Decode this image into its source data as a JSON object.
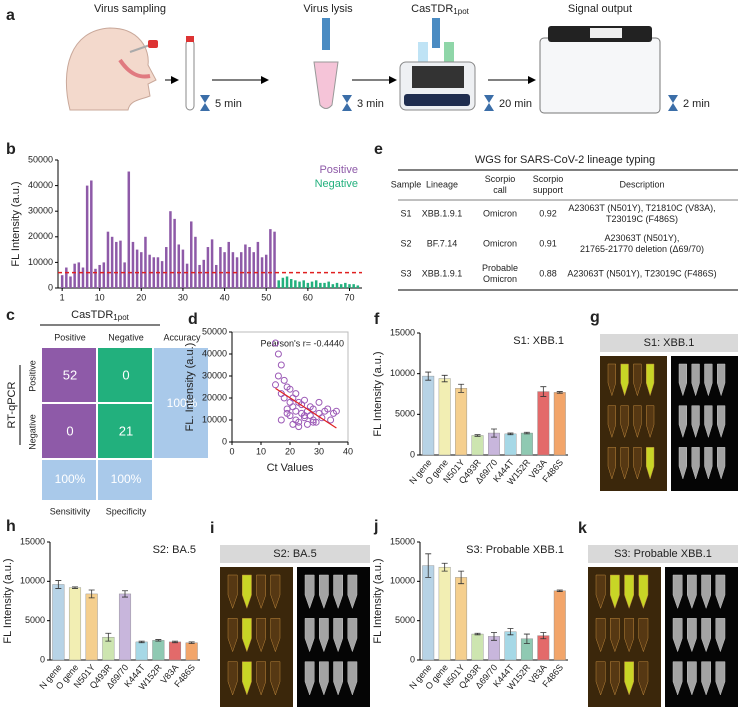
{
  "workflow": {
    "label": "a",
    "steps": [
      "Virus sampling",
      "Virus lysis",
      {
        "main": "CasTDR",
        "sub": "1pot"
      },
      "Signal output"
    ],
    "times": [
      "5 min",
      "3 min",
      "20 min",
      "2 min"
    ]
  },
  "matrix": {
    "label": "c",
    "method": {
      "main": "CasTDR",
      "sub": "1pot"
    },
    "reference": "RT-qPCR",
    "columns": [
      "Positive",
      "Negative",
      "Accuracy"
    ],
    "rows": [
      "Positive",
      "Negative"
    ],
    "cells": [
      [
        52,
        0
      ],
      [
        0,
        21
      ]
    ],
    "accuracy": "100%",
    "footer": [
      "100%",
      "100%"
    ],
    "footer_labels": [
      "Sensitivity",
      "Specificity"
    ]
  },
  "table": {
    "label": "e",
    "title": "WGS for SARS-CoV-2 lineage typing",
    "header": [
      "Sample",
      "Lineage",
      [
        "Scorpio",
        "call"
      ],
      [
        "Scorpio",
        "support"
      ],
      "Description"
    ],
    "rows": [
      [
        "S1",
        "XBB.1.9.1",
        "Omicron",
        0.92,
        [
          "A23063T (N501Y), T21810C (V83A),",
          "T23019C (F486S)"
        ]
      ],
      [
        "S2",
        "BF.7.14",
        "Omicron",
        0.91,
        [
          "A23063T (N501Y),",
          "21765-21770 deletion (Δ69/70)"
        ]
      ],
      [
        "S3",
        "XBB.1.9.1",
        [
          "Probable",
          "Omicron"
        ],
        0.88,
        [
          "A23063T (N501Y), T23019C (F486S)"
        ]
      ]
    ]
  },
  "images": [
    {
      "label": "g",
      "title": "S1: XBB.1"
    },
    {
      "label": "i",
      "title": "S2: BA.5"
    },
    {
      "label": "k",
      "title": "S3: Probable XBB.1"
    }
  ],
  "chart_data": [
    {
      "type": "bar",
      "label": "b",
      "ylabel": "FL Intensity (a.u.)",
      "x": [
        1,
        2,
        3,
        4,
        5,
        6,
        7,
        8,
        9,
        10,
        11,
        12,
        13,
        14,
        15,
        16,
        17,
        18,
        19,
        20,
        21,
        22,
        23,
        24,
        25,
        26,
        27,
        28,
        29,
        30,
        31,
        32,
        33,
        34,
        35,
        36,
        37,
        38,
        39,
        40,
        41,
        42,
        43,
        44,
        45,
        46,
        47,
        48,
        49,
        50,
        51,
        52,
        53,
        54,
        55,
        56,
        57,
        58,
        59,
        60,
        61,
        62,
        63,
        64,
        65,
        66,
        67,
        68,
        69,
        70,
        71,
        72
      ],
      "series": [
        {
          "name": "Positive",
          "color": "#8e5aa8",
          "values": [
            5000,
            8000,
            4500,
            9500,
            10000,
            8000,
            40000,
            42000,
            7500,
            9000,
            10000,
            22000,
            20000,
            18000,
            18500,
            10000,
            45500,
            18000,
            15000,
            14000,
            20000,
            13000,
            12000,
            12000,
            10500,
            16000,
            30000,
            27000,
            17000,
            15000,
            9500,
            26000,
            20000,
            9000,
            11000,
            16000,
            19000,
            9000,
            16000,
            14000,
            18000,
            14000,
            12000,
            14000,
            17000,
            16000,
            14000,
            18000,
            12000,
            13000,
            23000,
            22000,
            null,
            null,
            null,
            null,
            null,
            null,
            null,
            null,
            null,
            null,
            null,
            null,
            null,
            null,
            null,
            null,
            null,
            null,
            null,
            null
          ]
        },
        {
          "name": "Negative",
          "color": "#22b07d",
          "values": [
            null,
            null,
            null,
            null,
            null,
            null,
            null,
            null,
            null,
            null,
            null,
            null,
            null,
            null,
            null,
            null,
            null,
            null,
            null,
            null,
            null,
            null,
            null,
            null,
            null,
            null,
            null,
            null,
            null,
            null,
            null,
            null,
            null,
            null,
            null,
            null,
            null,
            null,
            null,
            null,
            null,
            null,
            null,
            null,
            null,
            null,
            null,
            null,
            null,
            null,
            null,
            null,
            3000,
            4000,
            4500,
            3500,
            3000,
            2500,
            3000,
            2000,
            2500,
            3000,
            2000,
            2000,
            2500,
            1500,
            2000,
            1500,
            2000,
            1500,
            1500,
            1000
          ]
        }
      ],
      "threshold": 6000,
      "threshold_color": "#e02020",
      "xlim": [
        0,
        73
      ],
      "xticks": [
        1,
        10,
        20,
        30,
        40,
        50,
        60,
        70
      ],
      "ylim": [
        0,
        50000
      ],
      "yticks": [
        0,
        10000,
        20000,
        30000,
        40000,
        50000
      ],
      "legend": "upper right"
    },
    {
      "type": "scatter",
      "label": "d",
      "xlabel": "Ct Values",
      "ylabel": "FL. Intensity (a.u.)",
      "annotation": "Pearson's r= -0.4440",
      "color": "#9b59b6",
      "fit_color": "#e02020",
      "x": [
        15,
        16,
        16,
        17,
        17,
        18,
        18,
        19,
        19,
        20,
        20,
        20,
        21,
        21,
        22,
        22,
        22,
        23,
        23,
        24,
        24,
        25,
        25,
        26,
        26,
        27,
        27,
        28,
        28,
        29,
        30,
        30,
        31,
        32,
        33,
        34,
        35,
        36,
        15,
        17,
        19,
        21,
        23,
        25,
        28
      ],
      "values": [
        45000,
        40000,
        30000,
        22000,
        35000,
        20000,
        28000,
        15000,
        25000,
        18000,
        12000,
        24000,
        16000,
        20000,
        10000,
        14000,
        22000,
        18000,
        9000,
        13000,
        17000,
        11000,
        19000,
        8000,
        14000,
        12000,
        16000,
        10000,
        15000,
        9000,
        13000,
        18000,
        11000,
        14000,
        15000,
        10000,
        13000,
        14000,
        26000,
        10000,
        13000,
        8000,
        7000,
        12000,
        9000
      ],
      "xlim": [
        0,
        40
      ],
      "xticks": [
        0,
        10,
        20,
        30,
        40
      ],
      "ylim": [
        0,
        50000
      ],
      "yticks": [
        0,
        10000,
        20000,
        30000,
        40000,
        50000
      ]
    },
    {
      "type": "catbar",
      "label": "f",
      "title": "S1: XBB.1",
      "ylabel": "FL Intensity (a.u.)",
      "categories": [
        "N gene",
        "O gene",
        "N501Y",
        "Q493R",
        "Δ69/70",
        "K444T",
        "W152R",
        "V83A",
        "F486S"
      ],
      "colors": [
        "#b7d3e6",
        "#f2eeb3",
        "#f5cf8e",
        "#cde5b0",
        "#c8b6dc",
        "#a6d8e6",
        "#8fc9b2",
        "#e36a6a",
        "#f2a56a"
      ],
      "values": [
        9700,
        9400,
        8200,
        2400,
        2700,
        2600,
        2700,
        7800,
        7700
      ],
      "errors": [
        500,
        400,
        500,
        100,
        500,
        100,
        100,
        600,
        100
      ],
      "ylim": [
        0,
        15000
      ],
      "yticks": [
        0,
        5000,
        10000,
        15000
      ]
    },
    {
      "type": "catbar",
      "label": "h",
      "title": "S2: BA.5",
      "ylabel": "FL Intensity (a.u.)",
      "categories": [
        "N gene",
        "O gene",
        "N501Y",
        "Q493R",
        "Δ69/70",
        "K444T",
        "W152R",
        "V83A",
        "F486S"
      ],
      "colors": [
        "#b7d3e6",
        "#f2eeb3",
        "#f5cf8e",
        "#cde5b0",
        "#c8b6dc",
        "#a6d8e6",
        "#8fc9b2",
        "#e36a6a",
        "#f2a56a"
      ],
      "values": [
        9600,
        9200,
        8400,
        2900,
        8400,
        2300,
        2500,
        2300,
        2200
      ],
      "errors": [
        500,
        100,
        500,
        500,
        400,
        100,
        100,
        100,
        100
      ],
      "ylim": [
        0,
        15000
      ],
      "yticks": [
        0,
        5000,
        10000,
        15000
      ]
    },
    {
      "type": "catbar",
      "label": "j",
      "title": "S3: Probable XBB.1",
      "ylabel": "FL Intensity (a.u.)",
      "categories": [
        "N gene",
        "O gene",
        "N501Y",
        "Q493R",
        "Δ69/70",
        "K444T",
        "W152R",
        "V83A",
        "F486S"
      ],
      "colors": [
        "#b7d3e6",
        "#f2eeb3",
        "#f5cf8e",
        "#cde5b0",
        "#c8b6dc",
        "#a6d8e6",
        "#8fc9b2",
        "#e36a6a",
        "#f2a56a"
      ],
      "values": [
        12000,
        11800,
        10500,
        3300,
        3000,
        3600,
        2700,
        3100,
        8800
      ],
      "errors": [
        1500,
        500,
        800,
        100,
        500,
        400,
        600,
        400,
        100
      ],
      "ylim": [
        0,
        15000
      ],
      "yticks": [
        0,
        5000,
        10000,
        15000
      ]
    }
  ]
}
